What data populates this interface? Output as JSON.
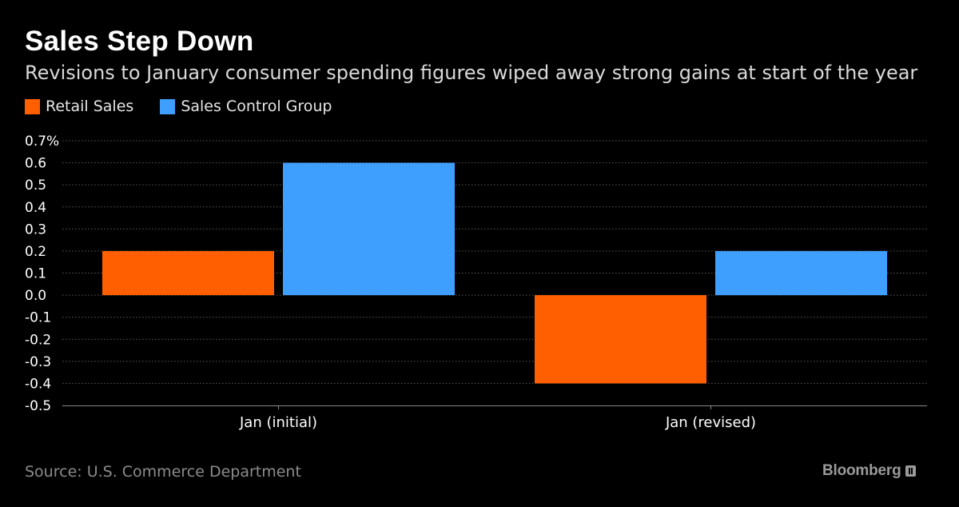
{
  "title": "Sales Step Down",
  "subtitle": "Revisions to January consumer spending figures wiped away strong gains at start of the year",
  "source": "Source: U.S. Commerce Department",
  "brand": "Bloomberg",
  "colors": {
    "retail": "#ff5f00",
    "control": "#3e9fff",
    "grid": "#5a5a5a",
    "axis_text": "#ffffff"
  },
  "chart_data": {
    "type": "bar",
    "categories": [
      "Jan (initial)",
      "Jan (revised)"
    ],
    "series": [
      {
        "name": "Retail Sales",
        "values": [
          0.2,
          -0.4
        ]
      },
      {
        "name": "Sales Control Group",
        "values": [
          0.6,
          0.2
        ]
      }
    ],
    "ylim": [
      -0.5,
      0.7
    ],
    "yticks": [
      "0.7%",
      "0.6",
      "0.5",
      "0.4",
      "0.3",
      "0.2",
      "0.1",
      "0.0",
      "-0.1",
      "-0.2",
      "-0.3",
      "-0.4",
      "-0.5"
    ],
    "ytick_values": [
      0.7,
      0.6,
      0.5,
      0.4,
      0.3,
      0.2,
      0.1,
      0.0,
      -0.1,
      -0.2,
      -0.3,
      -0.4,
      -0.5
    ],
    "grid": true,
    "legend": "top-left"
  }
}
